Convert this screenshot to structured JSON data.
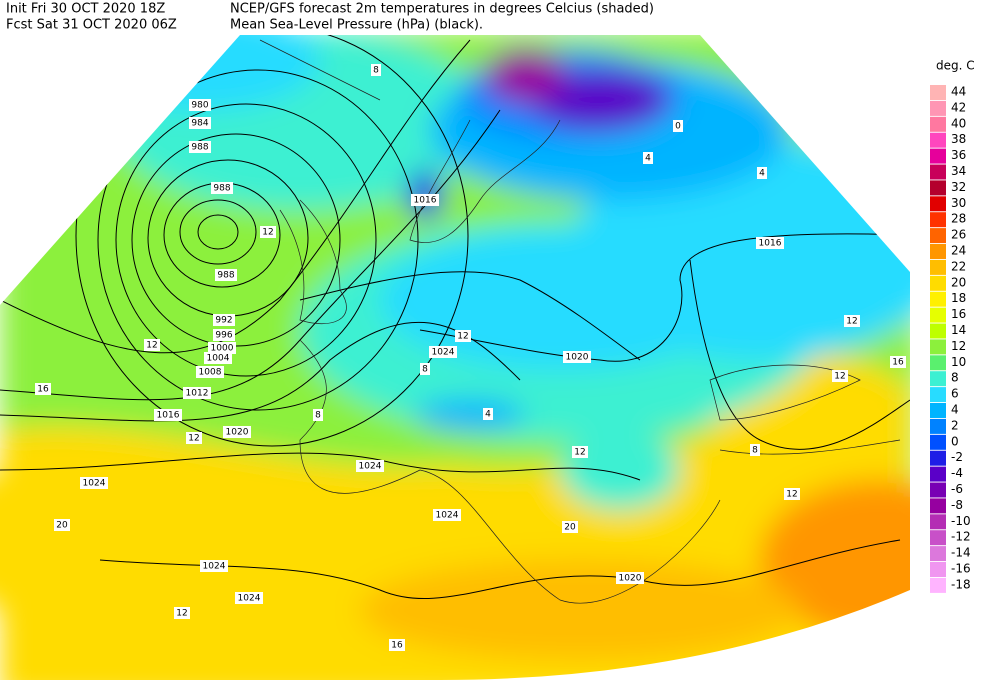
{
  "header": {
    "init": "Init  Fri 30 OCT 2020 18Z",
    "forecast": "Fcst Sat 31 OCT 2020 06Z",
    "title": "NCEP/GFS forecast 2m temperatures in degrees Celcius (shaded)",
    "subtitle": "Mean Sea-Level Pressure (hPa) (black)."
  },
  "legend": {
    "title": "deg. C",
    "entries": [
      {
        "label": "44",
        "color": "#ffb4b4"
      },
      {
        "label": "42",
        "color": "#ff96b4"
      },
      {
        "label": "40",
        "color": "#ff78a0"
      },
      {
        "label": "38",
        "color": "#ff46be"
      },
      {
        "label": "36",
        "color": "#e6009b"
      },
      {
        "label": "34",
        "color": "#c8005a"
      },
      {
        "label": "32",
        "color": "#b4002d"
      },
      {
        "label": "30",
        "color": "#e10000"
      },
      {
        "label": "28",
        "color": "#ff3200"
      },
      {
        "label": "26",
        "color": "#ff6400"
      },
      {
        "label": "24",
        "color": "#ff9600"
      },
      {
        "label": "22",
        "color": "#ffbe00"
      },
      {
        "label": "20",
        "color": "#ffdc00"
      },
      {
        "label": "18",
        "color": "#fff000"
      },
      {
        "label": "16",
        "color": "#e6ff00"
      },
      {
        "label": "14",
        "color": "#beff00"
      },
      {
        "label": "12",
        "color": "#8cf03c"
      },
      {
        "label": "10",
        "color": "#5af06e"
      },
      {
        "label": "8",
        "color": "#3cf0d2"
      },
      {
        "label": "6",
        "color": "#28dcff"
      },
      {
        "label": "4",
        "color": "#00b4ff"
      },
      {
        "label": "2",
        "color": "#0082ff"
      },
      {
        "label": "0",
        "color": "#0050ff"
      },
      {
        "label": "-2",
        "color": "#1e1ee6"
      },
      {
        "label": "-4",
        "color": "#5a00c8"
      },
      {
        "label": "-6",
        "color": "#7800b4"
      },
      {
        "label": "-8",
        "color": "#9600a0"
      },
      {
        "label": "-10",
        "color": "#b42db4"
      },
      {
        "label": "-12",
        "color": "#c850c8"
      },
      {
        "label": "-14",
        "color": "#dc78dc"
      },
      {
        "label": "-16",
        "color": "#f096f0"
      },
      {
        "label": "-18",
        "color": "#ffb4ff"
      }
    ]
  },
  "map": {
    "isobar_labels": [
      "980",
      "984",
      "988",
      "988",
      "988",
      "992",
      "996",
      "1000",
      "1004",
      "1008",
      "1012",
      "1016",
      "1020",
      "1024",
      "1024",
      "1024",
      "1024",
      "1024",
      "1024",
      "1020",
      "1016",
      "1016",
      "1020"
    ],
    "temperature_labels": [
      "8",
      "12",
      "12",
      "16",
      "12",
      "20",
      "12",
      "8",
      "12",
      "8",
      "4",
      "4",
      "4",
      "0",
      "12",
      "16",
      "12",
      "12",
      "12",
      "8",
      "20",
      "16"
    ]
  }
}
